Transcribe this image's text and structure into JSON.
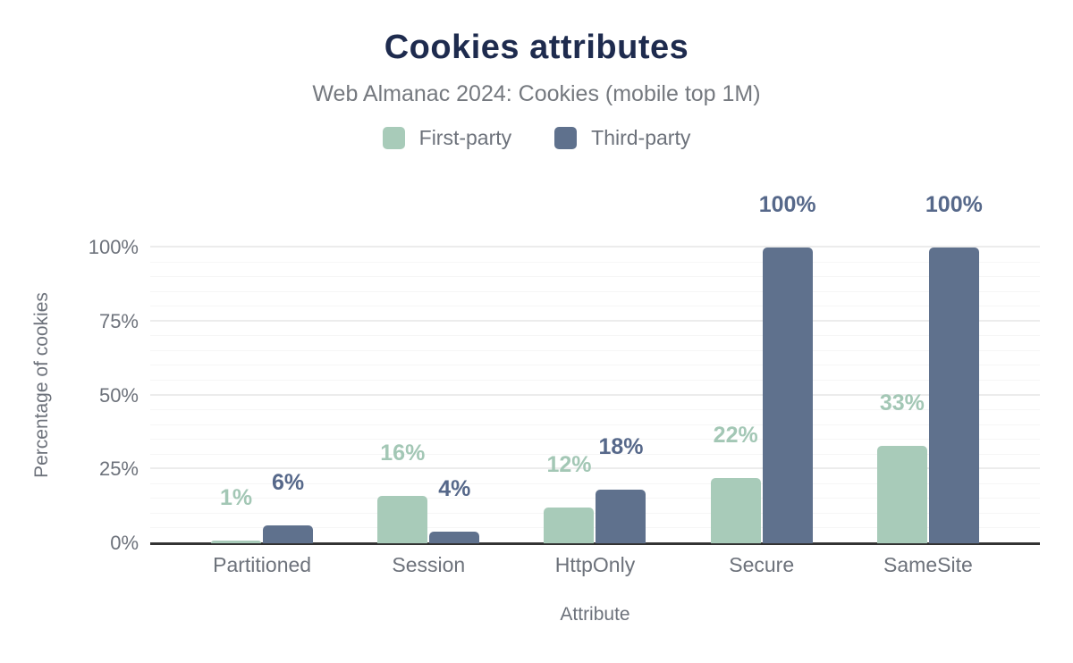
{
  "header": {
    "title": "Cookies attributes",
    "subtitle": "Web Almanac 2024: Cookies (mobile top 1M)"
  },
  "theme": {
    "title_color": "#1e2b4e",
    "subtitle_color": "#75797f",
    "axis_text_color": "#6d727b",
    "axis_line_color": "#333333",
    "major_grid_color": "#ececec",
    "minor_grid_color": "#f6f6f6"
  },
  "chart_data": {
    "type": "bar",
    "title": "Cookies attributes",
    "subtitle": "Web Almanac 2024: Cookies (mobile top 1M)",
    "xlabel": "Attribute",
    "ylabel": "Percentage of cookies",
    "categories": [
      "Partitioned",
      "Session",
      "HttpOnly",
      "Secure",
      "SameSite"
    ],
    "series": [
      {
        "name": "First-party",
        "color": "#a8cbb9",
        "label_color": "#a3c7b5",
        "values": [
          1,
          16,
          12,
          22,
          33
        ],
        "labels": [
          "1%",
          "16%",
          "12%",
          "22%",
          "33%"
        ]
      },
      {
        "name": "Third-party",
        "color": "#5f718d",
        "label_color": "#56688a",
        "values": [
          6,
          4,
          18,
          100,
          100
        ],
        "labels": [
          "6%",
          "4%",
          "18%",
          "100%",
          "100%"
        ]
      }
    ],
    "ylim": [
      0,
      100
    ],
    "yticks": {
      "labels": [
        "0%",
        "25%",
        "50%",
        "75%",
        "100%"
      ],
      "values": [
        0,
        25,
        50,
        75,
        100
      ]
    },
    "minor_grid_step": 5,
    "grid": "horizontal",
    "legend_position": "top"
  }
}
